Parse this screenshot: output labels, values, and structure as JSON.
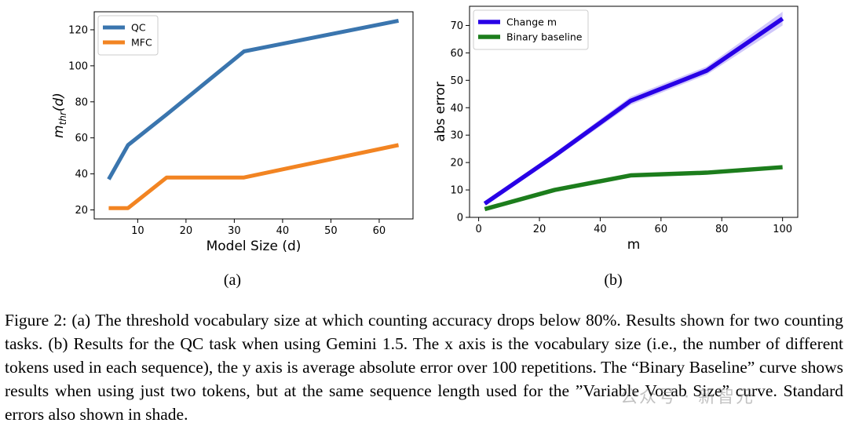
{
  "figure": {
    "sublabel_a": "(a)",
    "sublabel_b": "(b)",
    "caption": "Figure 2: (a) The threshold vocabulary size at which counting accuracy drops below 80%. Results shown for two counting tasks. (b) Results for the QC task when using Gemini 1.5. The x axis is the vocabulary size (i.e., the number of different tokens used in each sequence), the y axis is average absolute error over 100 repetitions. The “Binary Baseline” curve shows results when using just two tokens, but at the same sequence length used for the ”Variable Vocab Size” curve. Standard errors also shown in shade.",
    "watermark": "公众号 · 新智元"
  },
  "chart_data": [
    {
      "type": "line",
      "xlabel": "Model Size (d)",
      "ylabel_main": "m",
      "ylabel_sub": "thr",
      "ylabel_tail": "(d)",
      "xlim": [
        1,
        67
      ],
      "ylim": [
        15,
        130
      ],
      "xticks": [
        10,
        20,
        30,
        40,
        50,
        60
      ],
      "yticks": [
        20,
        40,
        60,
        80,
        100,
        120
      ],
      "legend_position": "top-left",
      "series": [
        {
          "name": "QC",
          "color": "#3a75ae",
          "x": [
            4,
            8,
            16,
            32,
            64
          ],
          "y": [
            37,
            56,
            73,
            108,
            125
          ]
        },
        {
          "name": "MFC",
          "color": "#f28422",
          "x": [
            4,
            8,
            16,
            32,
            64
          ],
          "y": [
            21,
            21,
            38,
            38,
            56
          ]
        }
      ]
    },
    {
      "type": "line",
      "xlabel": "m",
      "ylabel": "abs error",
      "xlim": [
        -3,
        105
      ],
      "ylim": [
        0,
        77
      ],
      "xticks": [
        0,
        20,
        40,
        60,
        80,
        100
      ],
      "yticks": [
        0,
        10,
        20,
        30,
        40,
        50,
        60,
        70
      ],
      "legend_position": "top-left",
      "series": [
        {
          "name": "Change m",
          "color": "#2800e6",
          "x": [
            2,
            25,
            50,
            75,
            100
          ],
          "y": [
            5,
            22.5,
            42.5,
            53.5,
            72.5
          ],
          "err": [
            0.5,
            1.0,
            1.5,
            1.5,
            2.5
          ]
        },
        {
          "name": "Binary baseline",
          "color": "#1c7d1c",
          "x": [
            2,
            25,
            50,
            75,
            100
          ],
          "y": [
            3,
            10,
            15.3,
            16.3,
            18.3
          ]
        }
      ]
    }
  ]
}
